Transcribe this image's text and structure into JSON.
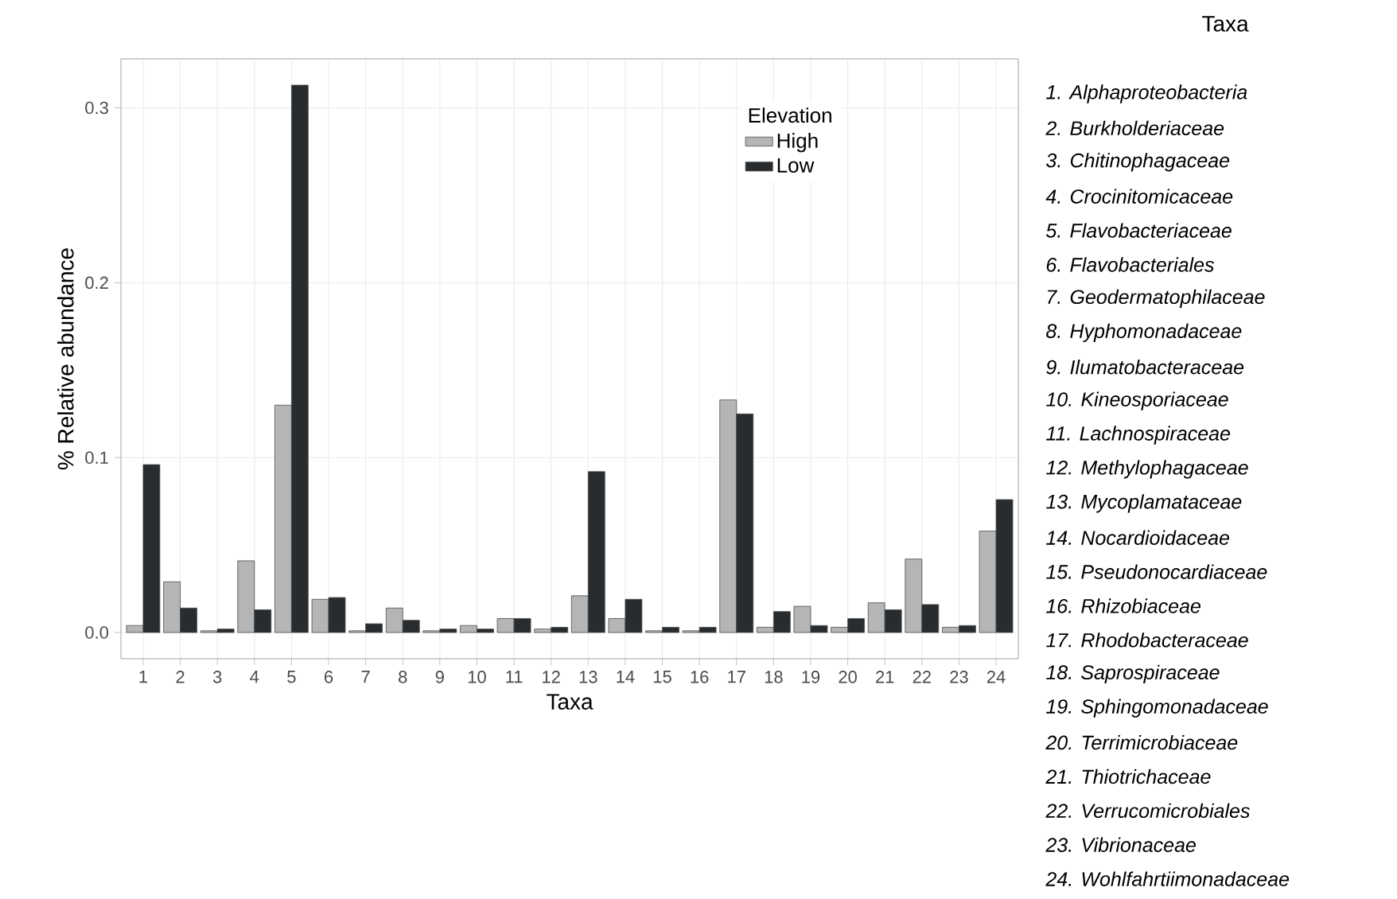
{
  "chart_data": {
    "type": "bar",
    "xlabel": "Taxa",
    "ylabel": "% Relative abundance",
    "legend_title": "Elevation",
    "categories": [
      "1",
      "2",
      "3",
      "4",
      "5",
      "6",
      "7",
      "8",
      "9",
      "10",
      "11",
      "12",
      "13",
      "14",
      "15",
      "16",
      "17",
      "18",
      "19",
      "20",
      "21",
      "22",
      "23",
      "24"
    ],
    "series": [
      {
        "name": "High",
        "color": "#b3b5b7",
        "values": [
          0.004,
          0.029,
          0.001,
          0.041,
          0.13,
          0.019,
          0.001,
          0.014,
          0.001,
          0.004,
          0.008,
          0.002,
          0.021,
          0.008,
          0.001,
          0.001,
          0.133,
          0.003,
          0.015,
          0.003,
          0.017,
          0.042,
          0.003,
          0.058
        ]
      },
      {
        "name": "Low",
        "color": "#292c2f",
        "values": [
          0.096,
          0.014,
          0.002,
          0.013,
          0.313,
          0.02,
          0.005,
          0.007,
          0.002,
          0.002,
          0.008,
          0.003,
          0.092,
          0.019,
          0.003,
          0.003,
          0.125,
          0.012,
          0.004,
          0.008,
          0.013,
          0.016,
          0.004,
          0.076
        ]
      }
    ],
    "ylim": [
      -0.015,
      0.328
    ],
    "yticks": [
      {
        "value": 0,
        "label": "0.0"
      },
      {
        "value": 0.1,
        "label": "0.1"
      },
      {
        "value": 0.2,
        "label": "0.2"
      },
      {
        "value": 0.3,
        "label": "0.3"
      }
    ],
    "grid": true,
    "legend": "top right",
    "annotations": [
      "Taxa",
      "1. Alphaproteobacteria",
      "2. Burkholderiaceae",
      "3. Chitinophagaceae",
      "4. Crocinitomicaceae",
      "5. Flavobacteriaceae",
      "6. Flavobacteriales",
      "7. Geodermatophilaceae",
      "8. Hyphomonadaceae",
      "9. Ilumatobacteraceae",
      "10. Kineosporiaceae",
      "11. Lachnospiraceae",
      "12. Methylophagaceae",
      "13. Mycoplamataceae",
      "14. Nocardioidaceae",
      "15. Pseudonocardiaceae",
      "16. Rhizobiaceae",
      "17. Rhodobacteraceae",
      "18. Saprospiraceae",
      "19. Sphingomonadaceae",
      "20. Terrimicrobiaceae",
      "21. Thiotrichaceae",
      "22. Verrucomicrobiales",
      "23. Vibrionaceae",
      "24. Wohlfahrtiimonadaceae"
    ]
  }
}
